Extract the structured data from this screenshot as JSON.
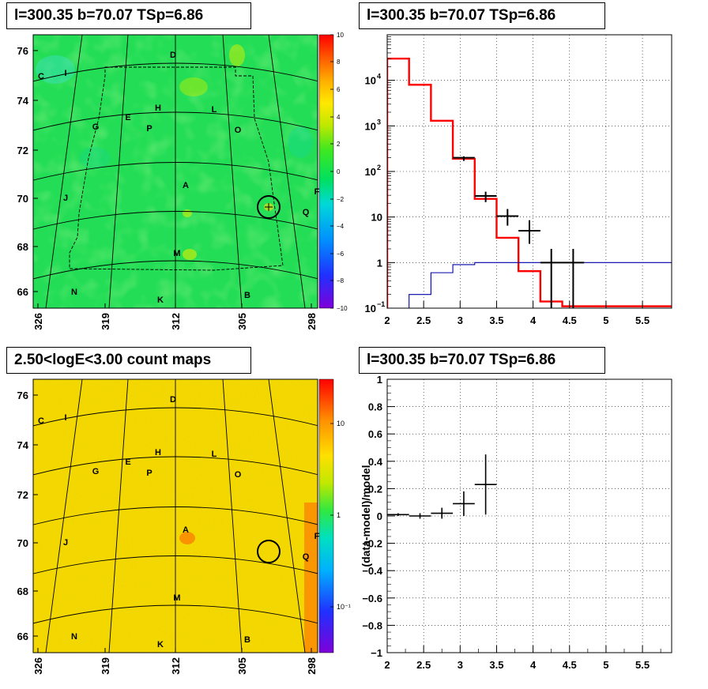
{
  "colors": {
    "model_line": "#ff0000",
    "blue_line": "#0000aa",
    "data_marker": "#000000"
  },
  "panels": {
    "tl": {
      "title": "l=300.35 b=70.07 TSp=6.86"
    },
    "tr": {
      "title": "l=300.35 b=70.07 TSp=6.86"
    },
    "bl": {
      "title": "2.50<logE<3.00 count maps"
    },
    "br": {
      "title": "l=300.35 b=70.07 TSp=6.86"
    }
  },
  "map_axes": {
    "x_ticks": [
      "326",
      "319",
      "312",
      "305",
      "298"
    ],
    "y_ticks": [
      "76",
      "74",
      "72",
      "70",
      "68",
      "66"
    ]
  },
  "source_labels": [
    "C",
    "I",
    "D",
    "E",
    "H",
    "L",
    "G",
    "P",
    "O",
    "A",
    "J",
    "F",
    "Q",
    "M",
    "N",
    "K",
    "B"
  ],
  "colorbar_tl": {
    "ticks": [
      "10",
      "8",
      "6",
      "4",
      "2",
      "0",
      "−2",
      "−4",
      "−6",
      "−8",
      "−10"
    ]
  },
  "colorbar_bl": {
    "ticks": [
      "10",
      "1",
      "10⁻¹"
    ]
  },
  "chart_data": [
    {
      "type": "line",
      "panel": "tr",
      "title": "l=300.35 b=70.07 TSp=6.86",
      "xlim": [
        2,
        5.9
      ],
      "ylim": [
        0.1,
        100000
      ],
      "y_scale": "log",
      "grid": true,
      "x_ticks": [
        "2",
        "2.5",
        "3",
        "3.5",
        "4",
        "4.5",
        "5",
        "5.5"
      ],
      "y_ticks": [
        {
          "value": 10000,
          "label": "10",
          "exp": "4"
        },
        {
          "value": 1000,
          "label": "10",
          "exp": "3"
        },
        {
          "value": 100,
          "label": "10",
          "exp": "2"
        },
        {
          "value": 10,
          "label": "10",
          "exp": ""
        },
        {
          "value": 1,
          "label": "1",
          "exp": ""
        },
        {
          "value": 0.1,
          "label": "10",
          "exp": "−1"
        }
      ],
      "series": [
        {
          "style": "step",
          "color": "#ff0000",
          "bins": [
            {
              "x0": 2.0,
              "x1": 2.3,
              "y": 30000
            },
            {
              "x0": 2.3,
              "x1": 2.6,
              "y": 8000
            },
            {
              "x0": 2.6,
              "x1": 2.9,
              "y": 1300
            },
            {
              "x0": 2.9,
              "x1": 3.2,
              "y": 190
            },
            {
              "x0": 3.2,
              "x1": 3.5,
              "y": 25
            },
            {
              "x0": 3.5,
              "x1": 3.8,
              "y": 3.5
            },
            {
              "x0": 3.8,
              "x1": 4.1,
              "y": 0.65
            },
            {
              "x0": 4.1,
              "x1": 4.4,
              "y": 0.14
            },
            {
              "x0": 4.4,
              "x1": 5.9,
              "y": 0.11
            }
          ]
        },
        {
          "style": "step",
          "color": "#0000aa",
          "bins": [
            {
              "x0": 2.3,
              "x1": 2.6,
              "y": 0.2
            },
            {
              "x0": 2.6,
              "x1": 2.9,
              "y": 0.6
            },
            {
              "x0": 2.9,
              "x1": 3.2,
              "y": 0.9
            },
            {
              "x0": 3.2,
              "x1": 5.9,
              "y": 1.0
            }
          ]
        },
        {
          "style": "errorbar",
          "color": "#000000",
          "points": [
            {
              "x": 3.05,
              "xerr": 0.15,
              "y": 200,
              "ylo": 185,
              "yhi": 215
            },
            {
              "x": 3.35,
              "xerr": 0.15,
              "y": 29,
              "ylo": 23,
              "yhi": 36
            },
            {
              "x": 3.65,
              "xerr": 0.15,
              "y": 10.5,
              "ylo": 7,
              "yhi": 15
            },
            {
              "x": 3.95,
              "xerr": 0.15,
              "y": 5,
              "ylo": 2.8,
              "yhi": 8.5
            },
            {
              "x": 4.25,
              "xerr": 0.15,
              "y": 1,
              "ylo": 0.1,
              "yhi": 2
            },
            {
              "x": 4.55,
              "xerr": 0.15,
              "y": 1,
              "ylo": 0.1,
              "yhi": 2
            }
          ]
        }
      ]
    },
    {
      "type": "scatter",
      "panel": "br",
      "title": "l=300.35 b=70.07 TSp=6.86",
      "ylabel": "(data-model)/model",
      "xlim": [
        2,
        5.9
      ],
      "ylim": [
        -1,
        1
      ],
      "grid": true,
      "x_ticks": [
        "2",
        "2.5",
        "3",
        "3.5",
        "4",
        "4.5",
        "5",
        "5.5"
      ],
      "y_ticks": [
        "1",
        "0.8",
        "0.6",
        "0.4",
        "0.2",
        "0",
        "−0.2",
        "−0.4",
        "−0.6",
        "−0.8",
        "−1"
      ],
      "points": [
        {
          "x": 2.15,
          "xerr": 0.15,
          "y": 0.01,
          "yerr": 0.01
        },
        {
          "x": 2.45,
          "xerr": 0.15,
          "y": 0.0,
          "yerr": 0.02
        },
        {
          "x": 2.75,
          "xerr": 0.15,
          "y": 0.02,
          "yerr": 0.04
        },
        {
          "x": 3.05,
          "xerr": 0.15,
          "y": 0.09,
          "yerr": 0.09
        },
        {
          "x": 3.35,
          "xerr": 0.15,
          "y": 0.23,
          "yerr": 0.22
        }
      ]
    }
  ]
}
